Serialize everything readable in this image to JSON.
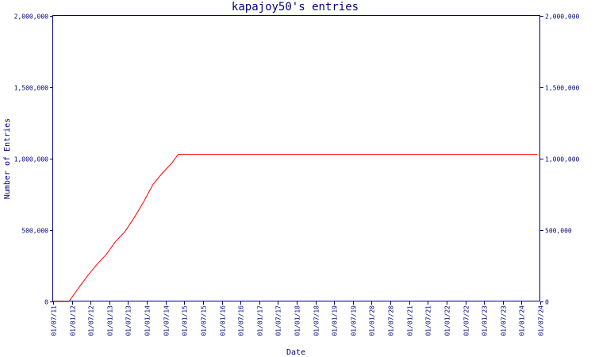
{
  "chart_data": {
    "type": "line",
    "title": "kapajoy50's entries",
    "xlabel": "Date",
    "ylabel": "Number of Entries",
    "ylim": [
      0,
      2000000
    ],
    "y_ticks": [
      0,
      500000,
      1000000,
      1500000,
      2000000
    ],
    "y_tick_labels": [
      "0",
      "500,000",
      "1,000,000",
      "1,500,000",
      "2,000,000"
    ],
    "x_tick_labels": [
      "01/07/11",
      "01/01/12",
      "01/07/12",
      "01/01/13",
      "01/07/13",
      "01/01/14",
      "01/07/14",
      "01/01/15",
      "01/07/15",
      "01/01/16",
      "01/07/16",
      "01/01/17",
      "01/07/17",
      "01/01/18",
      "01/07/18",
      "01/01/19",
      "01/07/19",
      "01/01/20",
      "01/07/20",
      "01/01/21",
      "01/07/21",
      "01/01/22",
      "01/07/22",
      "01/01/23",
      "01/07/23",
      "01/01/24",
      "01/07/24"
    ],
    "xlim": [
      "2011-07-01",
      "2024-07-01"
    ],
    "grid": false,
    "colors": {
      "axis": "#000080",
      "series": "#ff0000"
    },
    "series": [
      {
        "points": [
          {
            "x": "2011-07-01",
            "y": 0
          },
          {
            "x": "2011-12-01",
            "y": 0
          },
          {
            "x": "2012-03-01",
            "y": 90000
          },
          {
            "x": "2012-06-01",
            "y": 180000
          },
          {
            "x": "2012-09-01",
            "y": 260000
          },
          {
            "x": "2012-12-01",
            "y": 330000
          },
          {
            "x": "2013-03-01",
            "y": 420000
          },
          {
            "x": "2013-06-01",
            "y": 490000
          },
          {
            "x": "2013-09-01",
            "y": 590000
          },
          {
            "x": "2013-12-01",
            "y": 700000
          },
          {
            "x": "2014-03-01",
            "y": 820000
          },
          {
            "x": "2014-06-01",
            "y": 900000
          },
          {
            "x": "2014-09-01",
            "y": 970000
          },
          {
            "x": "2014-11-01",
            "y": 1030000
          },
          {
            "x": "2024-06-01",
            "y": 1030000
          }
        ]
      }
    ]
  }
}
